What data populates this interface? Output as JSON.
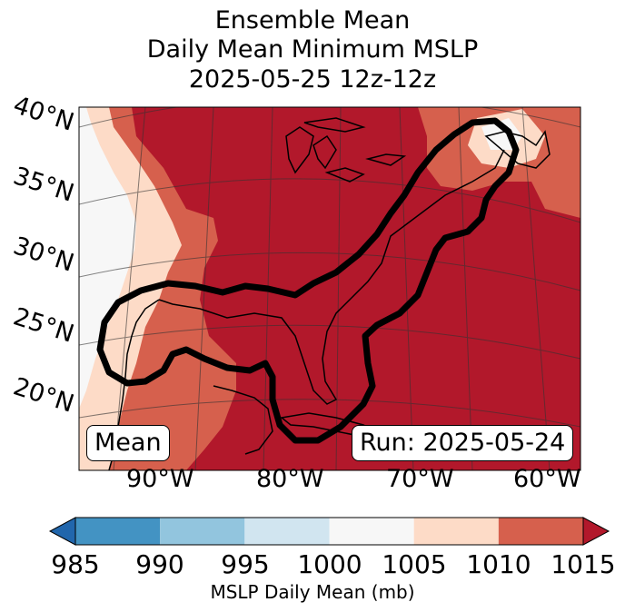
{
  "title": {
    "line1": "Ensemble Mean",
    "line2": "Daily Mean Minimum MSLP",
    "line3": "2025-05-25 12z-12z"
  },
  "map": {
    "lat_labels": [
      "40°N",
      "35°N",
      "30°N",
      "25°N",
      "20°N"
    ],
    "lon_labels": [
      "90°W",
      "80°W",
      "70°W",
      "60°W"
    ],
    "badge_left": "Mean",
    "badge_right": "Run: 2025-05-24",
    "contour_color": "#000000"
  },
  "colorbar": {
    "ticks": [
      "985",
      "990",
      "995",
      "1000",
      "1005",
      "1010",
      "1015"
    ],
    "label": "MSLP Daily Mean (mb)",
    "colors": [
      "#2166ac",
      "#4393c3",
      "#92c5de",
      "#d1e5f0",
      "#f7f7f7",
      "#fddbc7",
      "#d6604d",
      "#b2182b"
    ],
    "extend": "both"
  }
}
